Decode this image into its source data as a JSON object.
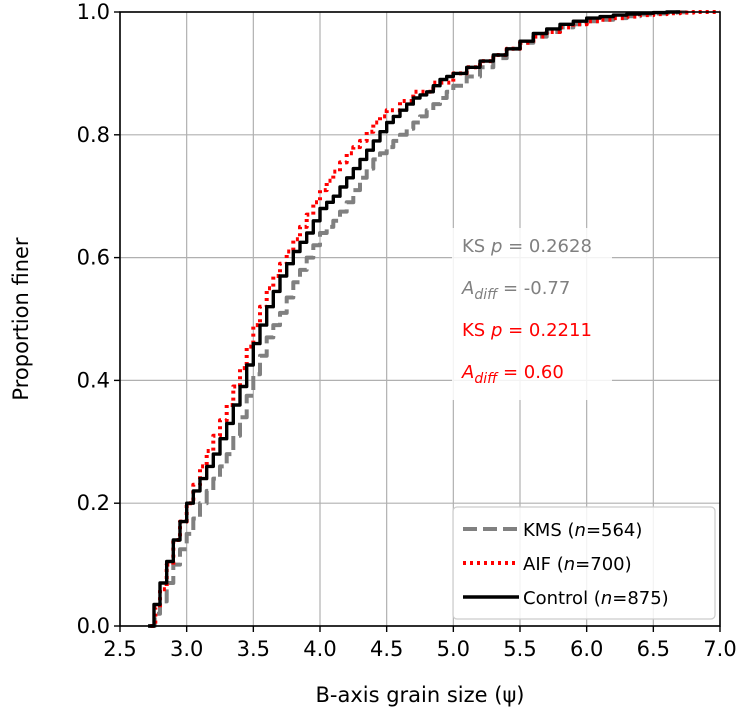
{
  "chart_data": {
    "type": "line",
    "xlabel": "B-axis grain size (ψ)",
    "ylabel": "Proportion finer",
    "xlim": [
      2.5,
      7.0
    ],
    "ylim": [
      0.0,
      1.0
    ],
    "xticks": [
      "2.5",
      "3.0",
      "3.5",
      "4.0",
      "4.5",
      "5.0",
      "5.5",
      "6.0",
      "6.5",
      "7.0"
    ],
    "yticks": [
      "0.0",
      "0.2",
      "0.4",
      "0.6",
      "0.8",
      "1.0"
    ],
    "grid": true,
    "legend_position": "bottom-right",
    "series": [
      {
        "name": "KMS",
        "n_label": "564",
        "color": "#808080",
        "style": "dashed",
        "x": [
          2.72,
          2.8,
          2.9,
          3.0,
          3.1,
          3.2,
          3.3,
          3.4,
          3.5,
          3.6,
          3.7,
          3.8,
          3.9,
          4.0,
          4.1,
          4.2,
          4.3,
          4.4,
          4.5,
          4.6,
          4.7,
          4.8,
          4.9,
          5.0,
          5.2,
          5.4,
          5.6,
          5.8,
          6.0,
          6.2,
          6.4,
          6.6,
          6.75
        ],
        "y": [
          0.0,
          0.04,
          0.1,
          0.15,
          0.2,
          0.24,
          0.28,
          0.34,
          0.41,
          0.47,
          0.51,
          0.56,
          0.6,
          0.64,
          0.66,
          0.69,
          0.73,
          0.76,
          0.78,
          0.8,
          0.82,
          0.84,
          0.86,
          0.88,
          0.91,
          0.94,
          0.96,
          0.975,
          0.985,
          0.99,
          0.996,
          0.999,
          1.0
        ]
      },
      {
        "name": "AIF",
        "n_label": "700",
        "color": "#ff0000",
        "style": "dotted",
        "x": [
          2.73,
          2.8,
          2.9,
          3.0,
          3.1,
          3.2,
          3.3,
          3.4,
          3.5,
          3.6,
          3.7,
          3.8,
          3.9,
          4.0,
          4.1,
          4.2,
          4.3,
          4.4,
          4.5,
          4.7,
          5.0,
          5.2,
          5.4,
          5.6,
          5.8,
          6.0,
          6.2,
          6.4,
          6.6,
          6.8,
          7.0
        ],
        "y": [
          0.0,
          0.06,
          0.14,
          0.2,
          0.26,
          0.31,
          0.36,
          0.42,
          0.49,
          0.55,
          0.59,
          0.63,
          0.67,
          0.71,
          0.74,
          0.77,
          0.79,
          0.82,
          0.84,
          0.87,
          0.9,
          0.92,
          0.94,
          0.96,
          0.975,
          0.985,
          0.99,
          0.995,
          0.998,
          1.0,
          1.0
        ]
      },
      {
        "name": "Control",
        "n_label": "875",
        "color": "#000000",
        "style": "solid",
        "x": [
          2.71,
          2.8,
          2.9,
          3.0,
          3.1,
          3.2,
          3.3,
          3.4,
          3.5,
          3.6,
          3.7,
          3.8,
          3.9,
          4.0,
          4.1,
          4.2,
          4.3,
          4.4,
          4.5,
          4.6,
          4.7,
          4.8,
          4.9,
          5.0,
          5.2,
          5.4,
          5.6,
          5.8,
          6.0,
          6.2,
          6.4,
          6.6,
          6.7
        ],
        "y": [
          0.0,
          0.07,
          0.14,
          0.2,
          0.24,
          0.28,
          0.33,
          0.39,
          0.46,
          0.52,
          0.57,
          0.61,
          0.64,
          0.68,
          0.7,
          0.73,
          0.76,
          0.79,
          0.82,
          0.84,
          0.86,
          0.87,
          0.89,
          0.9,
          0.92,
          0.94,
          0.965,
          0.98,
          0.99,
          0.995,
          0.998,
          1.0,
          1.0
        ]
      }
    ],
    "annotations": [
      {
        "prefix": "KS ",
        "var": "p",
        "text": " = 0.2628",
        "color": "#808080"
      },
      {
        "prefix": "",
        "var": "A",
        "sub": "diff",
        "text": " = -0.77",
        "color": "#808080"
      },
      {
        "prefix": "KS ",
        "var": "p",
        "text": " = 0.2211",
        "color": "#ff0000"
      },
      {
        "prefix": "",
        "var": "A",
        "sub": "diff",
        "text": " = 0.60",
        "color": "#ff0000"
      }
    ],
    "legend_n_symbol": "n",
    "legend_eq": "="
  }
}
